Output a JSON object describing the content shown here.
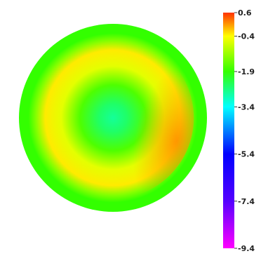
{
  "chart_data": {
    "type": "heatmap",
    "title": "",
    "colorbar": {
      "range": [
        -9.4,
        0.6
      ],
      "ticks": [
        {
          "value": 0.6,
          "label": "0.6"
        },
        {
          "value": -0.4,
          "label": "-0.4"
        },
        {
          "value": -1.9,
          "label": "-1.9"
        },
        {
          "value": -3.4,
          "label": "-3.4"
        },
        {
          "value": -5.4,
          "label": "-5.4"
        },
        {
          "value": -7.4,
          "label": "-7.4"
        },
        {
          "value": -9.4,
          "label": "-9.4"
        }
      ],
      "stops": [
        {
          "value": 0.6,
          "color": "#ff3300"
        },
        {
          "value": -0.4,
          "color": "#ffff00"
        },
        {
          "value": -1.9,
          "color": "#33ff00"
        },
        {
          "value": -3.4,
          "color": "#00ffff"
        },
        {
          "value": -5.4,
          "color": "#0000ff"
        },
        {
          "value": -7.4,
          "color": "#5500ff"
        },
        {
          "value": -9.4,
          "color": "#ff00ff"
        }
      ]
    },
    "map": {
      "shape": "circular",
      "radial_profile": [
        {
          "r": 0.0,
          "value": -2.8
        },
        {
          "r": 0.15,
          "value": -2.5
        },
        {
          "r": 0.35,
          "value": -1.7
        },
        {
          "r": 0.55,
          "value": -0.6
        },
        {
          "r": 0.72,
          "value": -0.3
        },
        {
          "r": 0.82,
          "value": -1.3
        },
        {
          "r": 0.9,
          "value": -1.9
        },
        {
          "r": 1.0,
          "value": -1.9
        }
      ],
      "hot_spot": {
        "angle_deg": 20,
        "r": 0.72,
        "value": 0.1
      }
    }
  }
}
